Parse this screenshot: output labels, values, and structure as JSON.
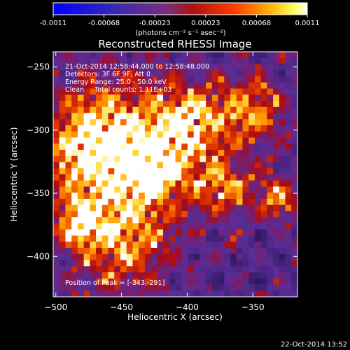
{
  "colorbar": {
    "tick_labels": [
      "-0.0011",
      "-0.00068",
      "-0.00023",
      "0.00023",
      "0.00068",
      "0.0011"
    ],
    "unit_label": "(photons cm⁻² s⁻¹ asec⁻²)",
    "range": [
      -0.0011,
      0.0011
    ],
    "colormap": "blue-purple-red-yellow-white"
  },
  "image": {
    "title": "Reconstructed RHESSI Image",
    "annotations": [
      "21-Oct-2014 12:58:44.000 to 12:58:48.000",
      "Detectors: 3F 6F 9F, Att 0",
      "Energy Range: 25.0 - 50.0 keV",
      "Clean     Total counts: 1.11E+03"
    ],
    "peak_label": "Position of Peak = [-343,-291]",
    "peak_position": [
      -343,
      -291
    ]
  },
  "axes": {
    "xlabel": "Heliocentric X (arcsec)",
    "ylabel": "Heliocentric Y (arcsec)",
    "xlim": [
      -502,
      -316
    ],
    "ylim": [
      -432,
      -238
    ],
    "xticks": [
      -500,
      -450,
      -400,
      -350
    ],
    "yticks": [
      -250,
      -300,
      -350,
      -400
    ],
    "xtick_labels": [
      "−500",
      "−450",
      "−400",
      "−350"
    ],
    "ytick_labels": [
      "−250",
      "−300",
      "−350",
      "−400"
    ]
  },
  "footer": {
    "timestamp": "22-Oct-2014 13:52"
  },
  "colors": {
    "background": "#000000",
    "text": "#ffffff",
    "low": "#0000ff",
    "mid_low": "#5a2fa0",
    "mid": "#a00000",
    "mid_high": "#ff8000",
    "high": "#ffffff"
  }
}
